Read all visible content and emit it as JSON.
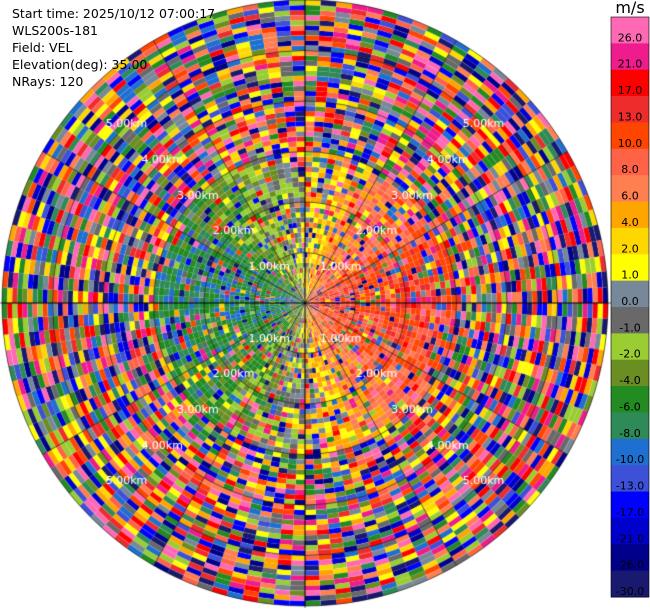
{
  "info": {
    "start_time": "Start time: 2025/10/12 07:00:17",
    "instrument": "WLS200s-181",
    "field": "Field: VEL",
    "elevation": "Elevation(deg): 35.00",
    "nrays": "NRays: 120"
  },
  "colorbar": {
    "unit": "m/s",
    "ticks": [
      "26.0",
      "21.0",
      "17.0",
      "13.0",
      "10.0",
      "8.0",
      "6.0",
      "4.0",
      "2.0",
      "1.0",
      "0.0",
      "-1.0",
      "-2.0",
      "-4.0",
      "-6.0",
      "-8.0",
      "-10.0",
      "-13.0",
      "-17.0",
      "-21.0",
      "-26.0",
      "-30.0"
    ],
    "colors": [
      "#ff69b4",
      "#ee1c8c",
      "#ff0000",
      "#ee2c2c",
      "#ff4500",
      "#ff6347",
      "#ff7f50",
      "#ffa500",
      "#ffd700",
      "#ffff00",
      "#778899",
      "#696969",
      "#9acd32",
      "#6b8e23",
      "#228b22",
      "#2e8b57",
      "#1e6fd0",
      "#3c50d8",
      "#0000ff",
      "#0000cd",
      "#00008b",
      "#191970"
    ]
  },
  "chart_data": {
    "type": "heatmap",
    "projection": "polar PPI",
    "field": "VEL",
    "units": "m/s",
    "n_rays": 120,
    "azimuth_step_deg": 3,
    "n_range_gates": 60,
    "max_range_km": 6.0,
    "range_rings_km": [
      1,
      2,
      3,
      4,
      5,
      6
    ],
    "range_labels": [
      "1.00km",
      "2.00km",
      "3.00km",
      "4.00km",
      "5.00km"
    ],
    "value_range": [
      -30,
      26
    ],
    "structure": {
      "inner_region_km": 3.0,
      "inner_pattern": "coherent dipole: negative velocities (blue/green) on west side, positive velocities (yellow/orange) on east side",
      "outer_region": "noise, values spread over full colour scale"
    }
  }
}
